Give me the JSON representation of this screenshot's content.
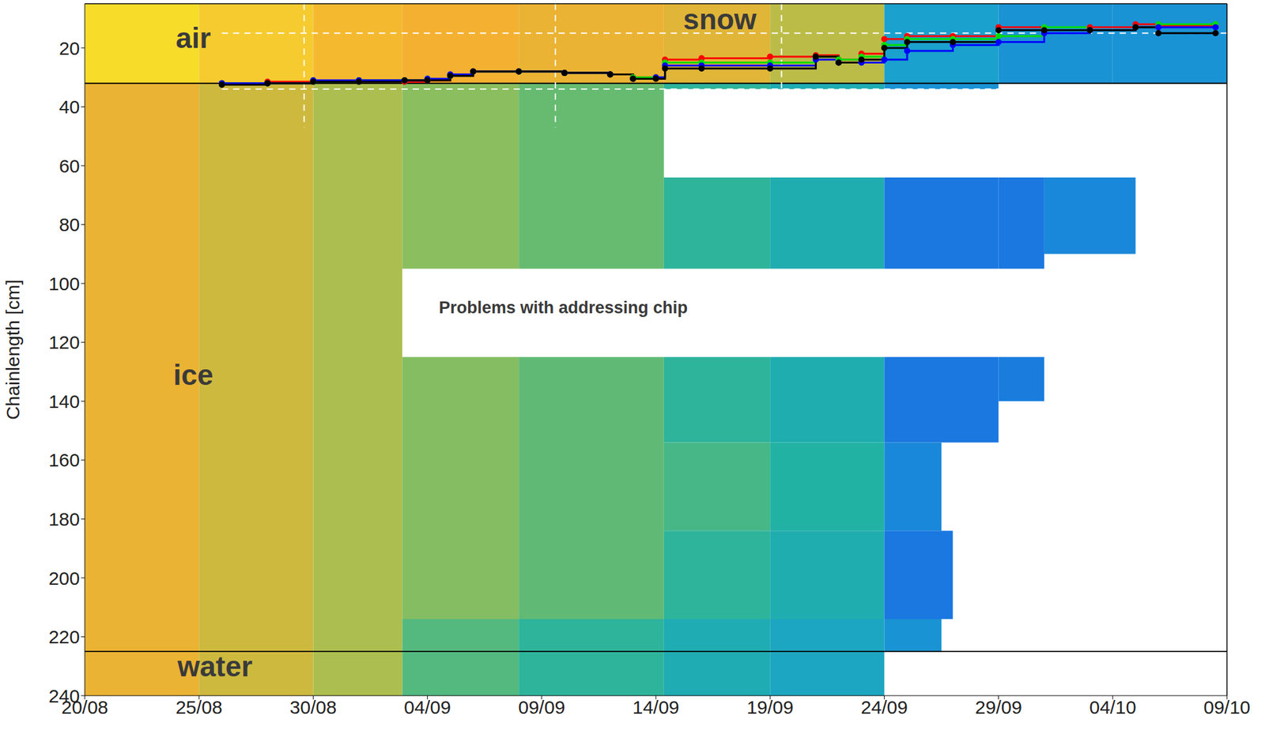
{
  "chart_data": {
    "type": "heatmap",
    "y_label": "Chainlength [cm]",
    "xlim": [
      0,
      50
    ],
    "xticks": [
      {
        "value": 0,
        "label": "20/08"
      },
      {
        "value": 5,
        "label": "25/08"
      },
      {
        "value": 10,
        "label": "30/08"
      },
      {
        "value": 15,
        "label": "04/09"
      },
      {
        "value": 20,
        "label": "09/09"
      },
      {
        "value": 25,
        "label": "14/09"
      },
      {
        "value": 30,
        "label": "19/09"
      },
      {
        "value": 35,
        "label": "24/09"
      },
      {
        "value": 40,
        "label": "29/09"
      },
      {
        "value": 45,
        "label": "04/10"
      },
      {
        "value": 50,
        "label": "09/10"
      }
    ],
    "ylim": [
      5,
      240
    ],
    "yticks": [
      20,
      40,
      60,
      80,
      100,
      120,
      140,
      160,
      180,
      200,
      220,
      240
    ],
    "grid": false,
    "color_range": [
      0,
      1
    ],
    "cells": [
      [
        0,
        5,
        5,
        32,
        0.97
      ],
      [
        5,
        10,
        5,
        32,
        0.94
      ],
      [
        10,
        13.9,
        5,
        32,
        0.9
      ],
      [
        13.9,
        19,
        5,
        32,
        0.88
      ],
      [
        19,
        25.35,
        5,
        32,
        0.86
      ],
      [
        25.35,
        30,
        5,
        32,
        0.84
      ],
      [
        30,
        35,
        5,
        32,
        0.76
      ],
      [
        35,
        40,
        5,
        32,
        0.36
      ],
      [
        40,
        45,
        5,
        32,
        0.3
      ],
      [
        45,
        50,
        5,
        32,
        0.3
      ],
      [
        0,
        5,
        32,
        240,
        0.86
      ],
      [
        5,
        10,
        32,
        240,
        0.8
      ],
      [
        10,
        13.9,
        32,
        240,
        0.73
      ],
      [
        13.9,
        19,
        32,
        95,
        0.67
      ],
      [
        13.9,
        19,
        125,
        214,
        0.66
      ],
      [
        13.9,
        19,
        214,
        240,
        0.58
      ],
      [
        19,
        25.35,
        32,
        95,
        0.61
      ],
      [
        19,
        25.35,
        125,
        214,
        0.6
      ],
      [
        19,
        25.35,
        214,
        240,
        0.52
      ],
      [
        25.35,
        30,
        32,
        34,
        0.52
      ],
      [
        25.35,
        30,
        64,
        95,
        0.52
      ],
      [
        25.35,
        30,
        125,
        154,
        0.52
      ],
      [
        25.35,
        30,
        154,
        184,
        0.56
      ],
      [
        25.35,
        30,
        184,
        214,
        0.52
      ],
      [
        25.35,
        30,
        214,
        240,
        0.45
      ],
      [
        30,
        35,
        32,
        34,
        0.45
      ],
      [
        30,
        35,
        64,
        95,
        0.46
      ],
      [
        30,
        35,
        125,
        154,
        0.46
      ],
      [
        30,
        35,
        154,
        184,
        0.5
      ],
      [
        30,
        35,
        184,
        214,
        0.46
      ],
      [
        30,
        35,
        214,
        240,
        0.4
      ],
      [
        35,
        40,
        32,
        34,
        0.3
      ],
      [
        35,
        40,
        64,
        95,
        0.2
      ],
      [
        35,
        40,
        125,
        154,
        0.2
      ],
      [
        35,
        37.5,
        154,
        184,
        0.26
      ],
      [
        35,
        38,
        184,
        214,
        0.2
      ],
      [
        35,
        37.5,
        214,
        225,
        0.3
      ],
      [
        40,
        42,
        64,
        95,
        0.2
      ],
      [
        40,
        42,
        125,
        140,
        0.22
      ],
      [
        42,
        46,
        64,
        90,
        0.26
      ]
    ],
    "x": [
      6,
      8,
      10,
      12,
      14,
      15,
      16,
      17,
      19,
      21,
      23,
      24,
      25,
      25.4,
      27,
      30,
      32,
      33,
      34,
      35,
      36,
      38,
      40,
      42,
      44,
      46,
      47,
      49.5
    ],
    "series": [
      {
        "color": "#ff0000",
        "marker": "circle",
        "line_style": "solid",
        "values": [
          32,
          31.5,
          31.5,
          31,
          31.5,
          31,
          29.5,
          28,
          28,
          28.5,
          29,
          30,
          30,
          24,
          23.5,
          23,
          22.5,
          24,
          22,
          17,
          16,
          16,
          13,
          14,
          13,
          12,
          12.5,
          12.5
        ]
      },
      {
        "color": "#00dd00",
        "marker": "circle",
        "line_style": "solid",
        "values": [
          32,
          32,
          31.5,
          31,
          31,
          30.5,
          29.5,
          28,
          28,
          28.5,
          29,
          30,
          30,
          25,
          25,
          25,
          23,
          24,
          23,
          19,
          17,
          17,
          16,
          13,
          14,
          13,
          12,
          12
        ]
      },
      {
        "color": "#0000ff",
        "marker": "circle",
        "line_style": "solid",
        "values": [
          32,
          32,
          31,
          31,
          31,
          30.5,
          29,
          28,
          28,
          28.5,
          29,
          30.5,
          30,
          26,
          26,
          26,
          24,
          25,
          25,
          24,
          21,
          19,
          18,
          15,
          14,
          13,
          13,
          13
        ]
      },
      {
        "color": "#000000",
        "marker": "circle",
        "line_style": "solid",
        "values": [
          32.5,
          32,
          31.5,
          31.5,
          31,
          31,
          29.5,
          28,
          28,
          28.5,
          29,
          30.5,
          30.5,
          27,
          27,
          27,
          23,
          25,
          24,
          20,
          18,
          18,
          14,
          14,
          14,
          13,
          15,
          15
        ]
      }
    ],
    "reference_lines": [
      {
        "y": 32,
        "color": "#000000",
        "line_style": "solid"
      },
      {
        "y": 225,
        "color": "#000000",
        "line_style": "solid"
      },
      {
        "y": 15,
        "from": 6,
        "to": 50,
        "color": "#ffffff",
        "line_style": "dashed"
      },
      {
        "y": 34,
        "from": 6,
        "to": 50,
        "color": "#ffffff",
        "line_style": "dashed"
      },
      {
        "x": 9.6,
        "from": 5,
        "to": 47,
        "color": "#ffffff",
        "line_style": "dashed"
      },
      {
        "x": 20.6,
        "from": 5,
        "to": 47,
        "color": "#ffffff",
        "line_style": "dashed"
      },
      {
        "x": 30.5,
        "from": 5,
        "to": 47,
        "color": "#ffffff",
        "line_style": "dashed"
      }
    ],
    "annotations": [
      {
        "text": "air",
        "x": 4.75,
        "y": 16.5
      },
      {
        "text": "snow",
        "x": 27.8,
        "y": 10.3
      },
      {
        "text": "ice",
        "x": 4.75,
        "y": 131
      },
      {
        "text": "water",
        "x": 5.7,
        "y": 230
      },
      {
        "text": "Problems with addressing chip",
        "x": 15.5,
        "y": 108
      }
    ]
  }
}
